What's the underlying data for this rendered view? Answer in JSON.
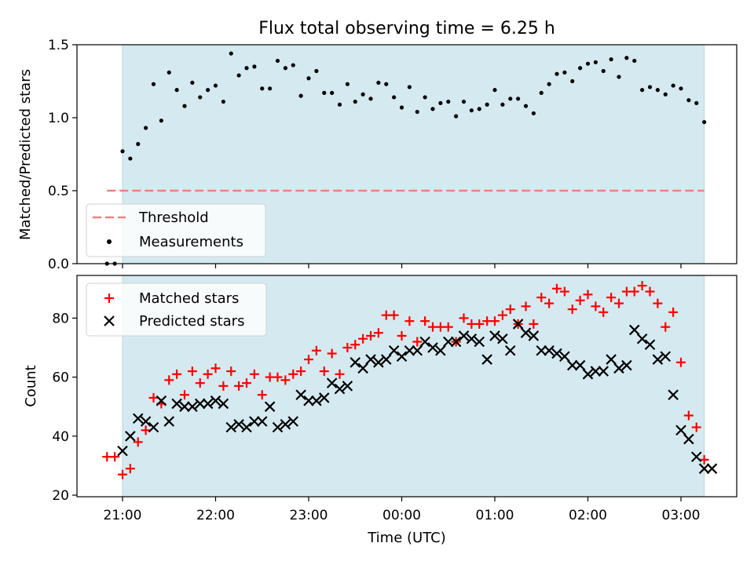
{
  "chart_data": [
    {
      "type": "scatter",
      "title": "Flux total observing time = 6.25 h",
      "xlabel": "",
      "ylabel": "Matched/Predicted stars",
      "ylim": [
        0,
        1.5
      ],
      "yticks": [
        "0.0",
        "0.5",
        "1.0",
        "1.5"
      ],
      "shaded_span": [
        "21:00",
        "03:15"
      ],
      "shade_color": "#d4eaf0",
      "legend": "lower-left",
      "threshold": {
        "name": "Threshold",
        "value": 0.5,
        "x_range": [
          "20:50",
          "03:15"
        ],
        "color": "#f08080"
      },
      "series": [
        {
          "name": "Measurements",
          "color": "#000000",
          "marker": "dot",
          "x": [
            "20:50",
            "20:55",
            "21:00",
            "21:05",
            "21:10",
            "21:15",
            "21:20",
            "21:25",
            "21:30",
            "21:35",
            "21:40",
            "21:45",
            "21:50",
            "21:55",
            "22:00",
            "22:05",
            "22:10",
            "22:15",
            "22:20",
            "22:25",
            "22:30",
            "22:35",
            "22:40",
            "22:45",
            "22:50",
            "22:55",
            "23:00",
            "23:05",
            "23:10",
            "23:15",
            "23:20",
            "23:25",
            "23:30",
            "23:35",
            "23:40",
            "23:45",
            "23:50",
            "23:55",
            "00:00",
            "00:05",
            "00:10",
            "00:15",
            "00:20",
            "00:25",
            "00:30",
            "00:35",
            "00:40",
            "00:45",
            "00:50",
            "00:55",
            "01:00",
            "01:05",
            "01:10",
            "01:15",
            "01:20",
            "01:25",
            "01:30",
            "01:35",
            "01:40",
            "01:45",
            "01:50",
            "01:55",
            "02:00",
            "02:05",
            "02:10",
            "02:15",
            "02:20",
            "02:25",
            "02:30",
            "02:35",
            "02:40",
            "02:45",
            "02:50",
            "02:55",
            "03:00",
            "03:05",
            "03:10",
            "03:15"
          ],
          "y": [
            0.0,
            0.0,
            0.77,
            0.72,
            0.82,
            0.93,
            1.23,
            0.98,
            1.31,
            1.19,
            1.08,
            1.24,
            1.14,
            1.19,
            1.22,
            1.11,
            1.44,
            1.29,
            1.34,
            1.35,
            1.2,
            1.2,
            1.39,
            1.34,
            1.36,
            1.15,
            1.27,
            1.32,
            1.17,
            1.17,
            1.09,
            1.23,
            1.11,
            1.16,
            1.13,
            1.24,
            1.23,
            1.14,
            1.07,
            1.21,
            1.04,
            1.14,
            1.06,
            1.1,
            1.11,
            1.01,
            1.11,
            1.05,
            1.06,
            1.09,
            1.19,
            1.09,
            1.13,
            1.13,
            1.08,
            1.03,
            1.17,
            1.23,
            1.3,
            1.31,
            1.25,
            1.34,
            1.37,
            1.38,
            1.32,
            1.4,
            1.28,
            1.41,
            1.39,
            1.19,
            1.21,
            1.19,
            1.16,
            1.22,
            1.2,
            1.12,
            1.1,
            0.97
          ]
        }
      ]
    },
    {
      "type": "scatter",
      "title": "",
      "xlabel": "Time (UTC)",
      "ylabel": "Count",
      "ylim": [
        20,
        94
      ],
      "yticks": [
        "20",
        "40",
        "60",
        "80"
      ],
      "xticks": [
        "21:00",
        "22:00",
        "23:00",
        "00:00",
        "01:00",
        "02:00",
        "03:00"
      ],
      "legend": "upper-left",
      "series": [
        {
          "name": "Matched stars",
          "color": "#ff0000",
          "marker": "plus",
          "x": [
            "20:50",
            "20:55",
            "21:00",
            "21:05",
            "21:10",
            "21:15",
            "21:20",
            "21:25",
            "21:30",
            "21:35",
            "21:40",
            "21:45",
            "21:50",
            "21:55",
            "22:00",
            "22:05",
            "22:10",
            "22:15",
            "22:20",
            "22:25",
            "22:30",
            "22:35",
            "22:40",
            "22:45",
            "22:50",
            "22:55",
            "23:00",
            "23:05",
            "23:10",
            "23:15",
            "23:20",
            "23:25",
            "23:30",
            "23:35",
            "23:40",
            "23:45",
            "23:50",
            "23:55",
            "00:00",
            "00:05",
            "00:10",
            "00:15",
            "00:20",
            "00:25",
            "00:30",
            "00:35",
            "00:40",
            "00:45",
            "00:50",
            "00:55",
            "01:00",
            "01:05",
            "01:10",
            "01:15",
            "01:20",
            "01:25",
            "01:30",
            "01:35",
            "01:40",
            "01:45",
            "01:50",
            "01:55",
            "02:00",
            "02:05",
            "02:10",
            "02:15",
            "02:20",
            "02:25",
            "02:30",
            "02:35",
            "02:40",
            "02:45",
            "02:50",
            "02:55",
            "03:00",
            "03:05",
            "03:10",
            "03:15"
          ],
          "y": [
            33,
            33,
            27,
            29,
            38,
            42,
            53,
            51,
            59,
            61,
            54,
            62,
            58,
            61,
            63,
            57,
            62,
            57,
            58,
            61,
            54,
            60,
            60,
            59,
            61,
            62,
            66,
            69,
            62,
            68,
            61,
            70,
            71,
            73,
            74,
            75,
            81,
            81,
            74,
            79,
            72,
            79,
            77,
            77,
            77,
            72,
            80,
            78,
            78,
            79,
            79,
            81,
            83,
            78,
            84,
            78,
            87,
            85,
            90,
            89,
            83,
            86,
            88,
            84,
            82,
            87,
            85,
            89,
            89,
            91,
            89,
            85,
            77,
            82,
            65,
            47,
            43,
            32
          ]
        },
        {
          "name": "Predicted stars",
          "color": "#000000",
          "marker": "x",
          "x": [
            "21:00",
            "21:05",
            "21:10",
            "21:15",
            "21:20",
            "21:25",
            "21:30",
            "21:35",
            "21:40",
            "21:45",
            "21:50",
            "21:55",
            "22:00",
            "22:05",
            "22:10",
            "22:15",
            "22:20",
            "22:25",
            "22:30",
            "22:35",
            "22:40",
            "22:45",
            "22:50",
            "22:55",
            "23:00",
            "23:05",
            "23:10",
            "23:15",
            "23:20",
            "23:25",
            "23:30",
            "23:35",
            "23:40",
            "23:45",
            "23:50",
            "23:55",
            "00:00",
            "00:05",
            "00:10",
            "00:15",
            "00:20",
            "00:25",
            "00:30",
            "00:35",
            "00:40",
            "00:45",
            "00:50",
            "00:55",
            "01:00",
            "01:05",
            "01:10",
            "01:15",
            "01:20",
            "01:25",
            "01:30",
            "01:35",
            "01:40",
            "01:45",
            "01:50",
            "01:55",
            "02:00",
            "02:05",
            "02:10",
            "02:15",
            "02:20",
            "02:25",
            "02:30",
            "02:35",
            "02:40",
            "02:45",
            "02:50",
            "02:55",
            "03:00",
            "03:05",
            "03:10",
            "03:15",
            "03:20"
          ],
          "y": [
            35,
            40,
            46,
            45,
            43,
            52,
            45,
            51,
            50,
            50,
            51,
            51,
            52,
            51,
            43,
            44,
            43,
            45,
            45,
            50,
            43,
            44,
            45,
            54,
            52,
            52,
            53,
            58,
            56,
            57,
            65,
            63,
            66,
            65,
            66,
            69,
            67,
            69,
            69,
            72,
            70,
            69,
            72,
            72,
            74,
            73,
            72,
            66,
            74,
            73,
            69,
            78,
            75,
            74,
            69,
            69,
            68,
            67,
            64,
            64,
            61,
            62,
            62,
            66,
            63,
            64,
            76,
            73,
            71,
            66,
            67,
            54,
            42,
            39,
            33,
            29,
            29
          ]
        }
      ]
    }
  ]
}
